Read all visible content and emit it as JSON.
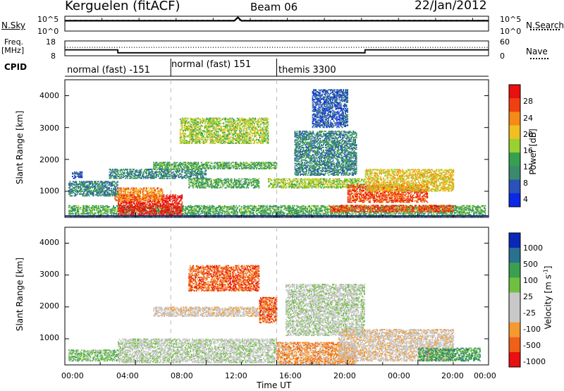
{
  "header": {
    "station": "Kerguelen (fitACF)",
    "beam": "Beam 06",
    "date": "22/Jan/2012"
  },
  "noise_panel": {
    "left_label": "N.Sky",
    "right_label": "N.Search",
    "left_ticks": [
      "10^5",
      "10^0"
    ],
    "right_ticks": [
      "10^5",
      "10^0"
    ]
  },
  "freq_panel": {
    "left_label_1": "Freq.",
    "left_label_2": "[MHz]",
    "right_label": "Nave",
    "left_ticks": [
      "18",
      "8"
    ],
    "right_ticks": [
      "60",
      "0"
    ]
  },
  "cpid": {
    "label": "CPID",
    "segments": [
      {
        "label": "normal (fast) -151",
        "start_h": 0,
        "end_h": 6
      },
      {
        "label": "normal (fast) 151",
        "start_h": 6,
        "end_h": 12
      },
      {
        "label": "themis 3300",
        "start_h": 12,
        "end_h": 24
      }
    ]
  },
  "colors": {
    "power": [
      "#0a28e6",
      "#2a52b8",
      "#3a8a6e",
      "#36a050",
      "#9ad030",
      "#f0c020",
      "#f58a18",
      "#f04010",
      "#e81010"
    ],
    "velocity": [
      "#e81010",
      "#f06018",
      "#f59a30",
      "#c8c8c8",
      "#c8c8c8",
      "#70c040",
      "#3aa050",
      "#2a7090",
      "#0a28b8"
    ]
  },
  "chart_data": [
    {
      "type": "line",
      "title": "",
      "x": [
        0,
        0.1,
        6,
        9.6,
        9.8,
        10,
        12,
        18,
        24
      ],
      "series": [
        {
          "name": "N.Sky",
          "values": [
            3000,
            3000,
            3000,
            3000,
            40000,
            3000,
            3000,
            3000,
            3000
          ]
        }
      ],
      "ylim_log": [
        "10^0",
        "10^5"
      ]
    },
    {
      "type": "line",
      "title": "",
      "x": [
        0,
        3,
        3,
        17,
        17,
        24
      ],
      "series": [
        {
          "name": "Freq.",
          "values": [
            12,
            12,
            10,
            10,
            12,
            12
          ]
        },
        {
          "name": "Nave",
          "values": [
            34,
            34,
            34,
            34,
            34,
            34
          ]
        }
      ],
      "ylim": [
        8,
        18
      ]
    },
    {
      "type": "heatmap",
      "ylabel": "Slant Range [km]",
      "xlim": [
        0,
        24
      ],
      "ylim": [
        180,
        4500
      ],
      "yticks": [
        "1000",
        "2000",
        "3000",
        "4000"
      ],
      "colorbar_label": "Power [dB]",
      "colorbar_ticks": [
        "28",
        "24",
        "20",
        "16",
        "12",
        "8",
        "4"
      ],
      "echo_regions": [
        {
          "t0": 0.2,
          "t1": 23.8,
          "r0": 200,
          "r1": 560,
          "level": 3
        },
        {
          "t0": 3.0,
          "t1": 6.6,
          "r0": 230,
          "r1": 880,
          "level": 8
        },
        {
          "t0": 2.8,
          "t1": 5.5,
          "r0": 700,
          "r1": 1100,
          "level": 6
        },
        {
          "t0": 0.2,
          "t1": 3.0,
          "r0": 850,
          "r1": 1300,
          "level": 2
        },
        {
          "t0": 0.4,
          "t1": 1.0,
          "r0": 1400,
          "r1": 1600,
          "level": 1
        },
        {
          "t0": 2.5,
          "t1": 8.0,
          "r0": 1400,
          "r1": 1700,
          "level": 2
        },
        {
          "t0": 5.0,
          "t1": 12.0,
          "r0": 1700,
          "r1": 1900,
          "level": 3
        },
        {
          "t0": 6.5,
          "t1": 11.5,
          "r0": 2500,
          "r1": 3300,
          "level": 4
        },
        {
          "t0": 7.0,
          "t1": 11.0,
          "r0": 1100,
          "r1": 1400,
          "level": 3
        },
        {
          "t0": 11.5,
          "t1": 17.0,
          "r0": 1100,
          "r1": 1400,
          "level": 4
        },
        {
          "t0": 13.0,
          "t1": 16.5,
          "r0": 1500,
          "r1": 2900,
          "level": 2
        },
        {
          "t0": 14.0,
          "t1": 16.0,
          "r0": 3000,
          "r1": 4200,
          "level": 1
        },
        {
          "t0": 16.0,
          "t1": 20.5,
          "r0": 650,
          "r1": 1200,
          "level": 7
        },
        {
          "t0": 17.0,
          "t1": 22.0,
          "r0": 1000,
          "r1": 1700,
          "level": 5
        },
        {
          "t0": 15.0,
          "t1": 22.0,
          "r0": 350,
          "r1": 560,
          "level": 7
        }
      ]
    },
    {
      "type": "heatmap",
      "ylabel": "Slant Range [km]",
      "xlabel": "Time UT",
      "xticks": [
        "00:00",
        "04:00",
        "08:00",
        "12:00",
        "16:00",
        "20:00",
        "00:00"
      ],
      "xlim": [
        0,
        24
      ],
      "ylim": [
        180,
        4500
      ],
      "yticks": [
        "1000",
        "2000",
        "3000",
        "4000"
      ],
      "colorbar_label": "Velocity [m s^-1]",
      "colorbar_ticks": [
        "1000",
        "500",
        "100",
        "25",
        "-25",
        "-100",
        "-500",
        "-1000"
      ],
      "echo_regions": [
        {
          "t0": 0.2,
          "t1": 3.0,
          "r0": 300,
          "r1": 650,
          "level": 5
        },
        {
          "t0": 3.0,
          "t1": 12.0,
          "r0": 250,
          "r1": 1000,
          "level": 4
        },
        {
          "t0": 7.0,
          "t1": 11.0,
          "r0": 2500,
          "r1": 3300,
          "level": 1
        },
        {
          "t0": 12.0,
          "t1": 16.5,
          "r0": 200,
          "r1": 900,
          "level": 2
        },
        {
          "t0": 12.5,
          "t1": 17.0,
          "r0": 1100,
          "r1": 2700,
          "level": 4
        },
        {
          "t0": 15.5,
          "t1": 22.0,
          "r0": 300,
          "r1": 1300,
          "level": 3
        },
        {
          "t0": 20.0,
          "t1": 23.5,
          "r0": 300,
          "r1": 700,
          "level": 6
        },
        {
          "t0": 5.0,
          "t1": 12.0,
          "r0": 1700,
          "r1": 2000,
          "level": 3
        },
        {
          "t0": 11.0,
          "t1": 12.0,
          "r0": 1500,
          "r1": 2300,
          "level": 1
        }
      ]
    }
  ]
}
